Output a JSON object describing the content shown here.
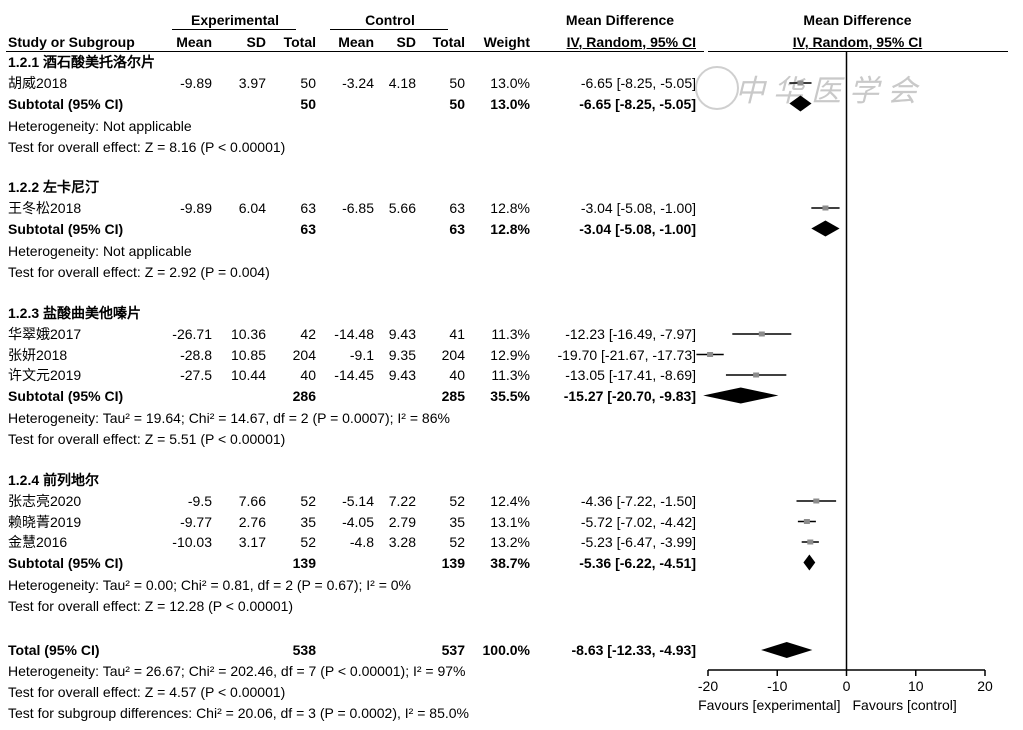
{
  "header": {
    "group1": "Experimental",
    "group2": "Control",
    "md": "Mean Difference",
    "plot_md": "Mean Difference",
    "study": "Study or Subgroup",
    "mean": "Mean",
    "sd": "SD",
    "total": "Total",
    "mean2": "Mean",
    "sd2": "SD",
    "total2": "Total",
    "weight": "Weight",
    "method": "IV, Random, 95% CI",
    "plot_method": "IV, Random, 95% CI"
  },
  "watermark": "中华医学会",
  "subgroups": [
    {
      "title": "1.2.1 酒石酸美托洛尔片",
      "studies": [
        {
          "name": "胡威2018",
          "e_mean": "-9.89",
          "e_sd": "3.97",
          "e_total": "50",
          "c_mean": "-3.24",
          "c_sd": "4.18",
          "c_total": "50",
          "weight": "13.0%",
          "ci_text": "-6.65 [-8.25, -5.05]",
          "md": -6.65,
          "lo": -8.25,
          "hi": -5.05
        }
      ],
      "subtotal": {
        "label": "Subtotal (95% CI)",
        "e_total": "50",
        "c_total": "50",
        "weight": "13.0%",
        "ci_text": "-6.65 [-8.25, -5.05]",
        "md": -6.65,
        "lo": -8.25,
        "hi": -5.05
      },
      "heterogeneity": "Heterogeneity: Not applicable",
      "overall": "Test for overall effect: Z = 8.16 (P < 0.00001)"
    },
    {
      "title": "1.2.2 左卡尼汀",
      "studies": [
        {
          "name": "王冬松2018",
          "e_mean": "-9.89",
          "e_sd": "6.04",
          "e_total": "63",
          "c_mean": "-6.85",
          "c_sd": "5.66",
          "c_total": "63",
          "weight": "12.8%",
          "ci_text": "-3.04 [-5.08, -1.00]",
          "md": -3.04,
          "lo": -5.08,
          "hi": -1.0
        }
      ],
      "subtotal": {
        "label": "Subtotal (95% CI)",
        "e_total": "63",
        "c_total": "63",
        "weight": "12.8%",
        "ci_text": "-3.04 [-5.08, -1.00]",
        "md": -3.04,
        "lo": -5.08,
        "hi": -1.0
      },
      "heterogeneity": "Heterogeneity: Not applicable",
      "overall": "Test for overall effect: Z = 2.92 (P = 0.004)"
    },
    {
      "title": "1.2.3 盐酸曲美他嗪片",
      "studies": [
        {
          "name": "华翠娥2017",
          "e_mean": "-26.71",
          "e_sd": "10.36",
          "e_total": "42",
          "c_mean": "-14.48",
          "c_sd": "9.43",
          "c_total": "41",
          "weight": "11.3%",
          "ci_text": "-12.23 [-16.49, -7.97]",
          "md": -12.23,
          "lo": -16.49,
          "hi": -7.97
        },
        {
          "name": "张妍2018",
          "e_mean": "-28.8",
          "e_sd": "10.85",
          "e_total": "204",
          "c_mean": "-9.1",
          "c_sd": "9.35",
          "c_total": "204",
          "weight": "12.9%",
          "ci_text": "-19.70 [-21.67, -17.73]",
          "md": -19.7,
          "lo": -21.67,
          "hi": -17.73
        },
        {
          "name": "许文元2019",
          "e_mean": "-27.5",
          "e_sd": "10.44",
          "e_total": "40",
          "c_mean": "-14.45",
          "c_sd": "9.43",
          "c_total": "40",
          "weight": "11.3%",
          "ci_text": "-13.05 [-17.41, -8.69]",
          "md": -13.05,
          "lo": -17.41,
          "hi": -8.69
        }
      ],
      "subtotal": {
        "label": "Subtotal (95% CI)",
        "e_total": "286",
        "c_total": "285",
        "weight": "35.5%",
        "ci_text": "-15.27 [-20.70, -9.83]",
        "md": -15.27,
        "lo": -20.7,
        "hi": -9.83
      },
      "heterogeneity": "Heterogeneity: Tau² = 19.64; Chi² = 14.67, df = 2 (P = 0.0007); I² = 86%",
      "overall": "Test for overall effect: Z = 5.51 (P < 0.00001)"
    },
    {
      "title": "1.2.4 前列地尔",
      "studies": [
        {
          "name": "张志亮2020",
          "e_mean": "-9.5",
          "e_sd": "7.66",
          "e_total": "52",
          "c_mean": "-5.14",
          "c_sd": "7.22",
          "c_total": "52",
          "weight": "12.4%",
          "ci_text": "-4.36 [-7.22, -1.50]",
          "md": -4.36,
          "lo": -7.22,
          "hi": -1.5
        },
        {
          "name": "赖晓菁2019",
          "e_mean": "-9.77",
          "e_sd": "2.76",
          "e_total": "35",
          "c_mean": "-4.05",
          "c_sd": "2.79",
          "c_total": "35",
          "weight": "13.1%",
          "ci_text": "-5.72 [-7.02, -4.42]",
          "md": -5.72,
          "lo": -7.02,
          "hi": -4.42
        },
        {
          "name": "金慧2016",
          "e_mean": "-10.03",
          "e_sd": "3.17",
          "e_total": "52",
          "c_mean": "-4.8",
          "c_sd": "3.28",
          "c_total": "52",
          "weight": "13.2%",
          "ci_text": "-5.23 [-6.47, -3.99]",
          "md": -5.23,
          "lo": -6.47,
          "hi": -3.99
        }
      ],
      "subtotal": {
        "label": "Subtotal (95% CI)",
        "e_total": "139",
        "c_total": "139",
        "weight": "38.7%",
        "ci_text": "-5.36 [-6.22, -4.51]",
        "md": -5.36,
        "lo": -6.22,
        "hi": -4.51
      },
      "heterogeneity": "Heterogeneity: Tau² = 0.00; Chi² = 0.81, df = 2 (P = 0.67); I² = 0%",
      "overall": "Test for overall effect: Z = 12.28 (P < 0.00001)"
    }
  ],
  "total": {
    "label": "Total (95% CI)",
    "e_total": "538",
    "c_total": "537",
    "weight": "100.0%",
    "ci_text": "-8.63 [-12.33, -4.93]",
    "md": -8.63,
    "lo": -12.33,
    "hi": -4.93
  },
  "footer": [
    "Heterogeneity: Tau² = 26.67; Chi² = 202.46, df = 7 (P < 0.00001); I² = 97%",
    "Test for overall effect: Z = 4.57 (P < 0.00001)",
    "Test for subgroup differences: Chi² = 20.06, df = 3 (P = 0.0002), I² = 85.0%"
  ],
  "chart_data": {
    "type": "forest",
    "xlim": [
      -20,
      20
    ],
    "ticks": [
      -20,
      -10,
      0,
      10,
      20
    ],
    "ticklabels": [
      "-20",
      "-10",
      "0",
      "10",
      "20"
    ],
    "left_label": "Favours [experimental]",
    "right_label": "Favours [control]",
    "marker_color": "#8c8c8c",
    "line_color": "#000000"
  }
}
